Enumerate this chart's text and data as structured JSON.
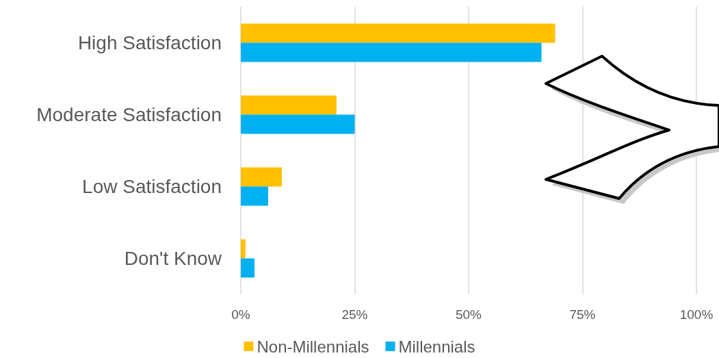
{
  "chart_data": {
    "type": "bar",
    "orientation": "horizontal",
    "categories": [
      "High Satisfaction",
      "Moderate Satisfaction",
      "Low Satisfaction",
      "Don't Know"
    ],
    "series": [
      {
        "name": "Non-Millennials",
        "color": "#ffc000",
        "values": [
          69,
          21,
          9,
          1
        ]
      },
      {
        "name": "Millennials",
        "color": "#00b0f0",
        "values": [
          66,
          25,
          6,
          3
        ]
      }
    ],
    "xlim": [
      0,
      100
    ],
    "xticks": [
      {
        "value": 0,
        "label": "0%"
      },
      {
        "value": 25,
        "label": "25%"
      },
      {
        "value": 50,
        "label": "50%"
      },
      {
        "value": 75,
        "label": "75%"
      },
      {
        "value": 100,
        "label": "100%"
      }
    ],
    "grid": "x",
    "legend": "bottom"
  }
}
